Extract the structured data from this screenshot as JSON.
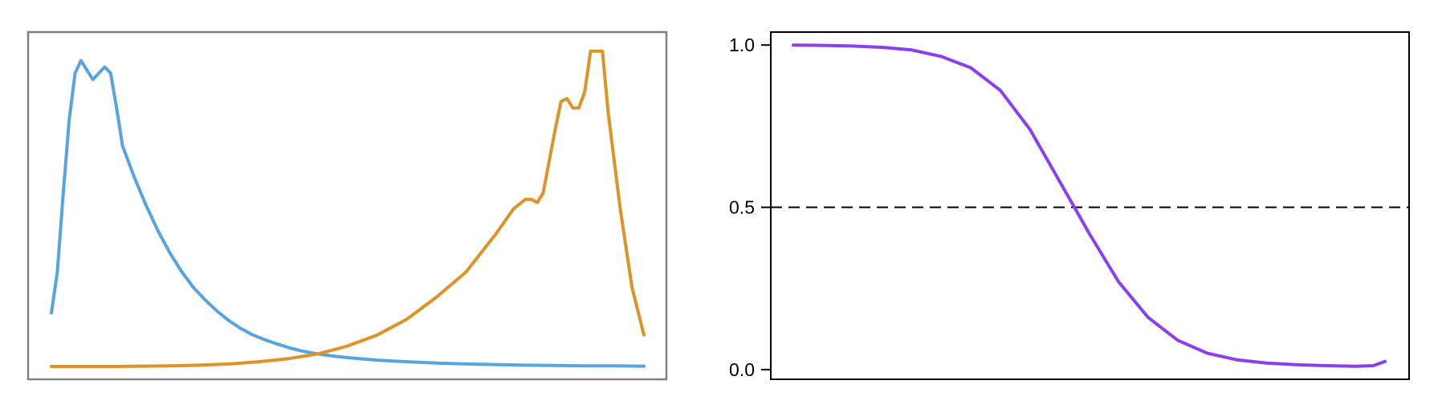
{
  "chart_data": [
    {
      "type": "line",
      "title": "",
      "xlabel": "",
      "ylabel": "",
      "axes_visible": false,
      "xlim": [
        0,
        1
      ],
      "ylim": [
        0,
        1.03
      ],
      "series": [
        {
          "color": "#56a5e0",
          "x": [
            0.0,
            0.01,
            0.02,
            0.03,
            0.04,
            0.05,
            0.06,
            0.07,
            0.08,
            0.09,
            0.1,
            0.11,
            0.12,
            0.14,
            0.16,
            0.18,
            0.2,
            0.22,
            0.24,
            0.26,
            0.28,
            0.3,
            0.32,
            0.34,
            0.36,
            0.38,
            0.4,
            0.42,
            0.44,
            0.46,
            0.48,
            0.5,
            0.55,
            0.6,
            0.65,
            0.7,
            0.75,
            0.8,
            0.85,
            0.9,
            0.95,
            1.0
          ],
          "y": [
            0.17,
            0.3,
            0.55,
            0.78,
            0.93,
            0.97,
            0.94,
            0.91,
            0.93,
            0.95,
            0.93,
            0.82,
            0.7,
            0.6,
            0.51,
            0.43,
            0.36,
            0.3,
            0.25,
            0.21,
            0.175,
            0.145,
            0.12,
            0.1,
            0.085,
            0.072,
            0.06,
            0.05,
            0.043,
            0.037,
            0.032,
            0.028,
            0.02,
            0.015,
            0.011,
            0.008,
            0.006,
            0.004,
            0.003,
            0.002,
            0.002,
            0.001
          ]
        },
        {
          "color": "#df9225",
          "x": [
            0.0,
            0.05,
            0.1,
            0.15,
            0.2,
            0.25,
            0.3,
            0.35,
            0.4,
            0.45,
            0.5,
            0.55,
            0.6,
            0.65,
            0.7,
            0.75,
            0.78,
            0.8,
            0.81,
            0.82,
            0.83,
            0.84,
            0.85,
            0.86,
            0.87,
            0.88,
            0.89,
            0.9,
            0.91,
            0.92,
            0.93,
            0.94,
            0.96,
            0.98,
            1.0
          ],
          "y": [
            0.0,
            0.0,
            0.0,
            0.001,
            0.002,
            0.004,
            0.008,
            0.015,
            0.025,
            0.04,
            0.065,
            0.1,
            0.15,
            0.22,
            0.3,
            0.42,
            0.5,
            0.53,
            0.53,
            0.52,
            0.55,
            0.65,
            0.75,
            0.84,
            0.85,
            0.82,
            0.82,
            0.87,
            1.0,
            1.0,
            1.0,
            0.8,
            0.5,
            0.25,
            0.1
          ]
        }
      ]
    },
    {
      "type": "line",
      "title": "",
      "xlabel": "",
      "ylabel": "",
      "x_ticks_visible": false,
      "xlim": [
        0,
        1
      ],
      "ylim": [
        -0.03,
        1.04
      ],
      "yticks": [
        "0.0",
        "0.5",
        "1.0"
      ],
      "reference_line": {
        "y": 0.5,
        "style": "dashed",
        "color": "#000000"
      },
      "series": [
        {
          "color": "#8a3ff0",
          "x": [
            0.0,
            0.05,
            0.1,
            0.15,
            0.2,
            0.25,
            0.3,
            0.35,
            0.4,
            0.45,
            0.5,
            0.55,
            0.6,
            0.65,
            0.7,
            0.75,
            0.8,
            0.85,
            0.9,
            0.95,
            0.98,
            1.0
          ],
          "y": [
            1.0,
            0.999,
            0.997,
            0.993,
            0.985,
            0.965,
            0.93,
            0.86,
            0.74,
            0.58,
            0.42,
            0.27,
            0.16,
            0.09,
            0.05,
            0.03,
            0.02,
            0.015,
            0.012,
            0.01,
            0.012,
            0.025
          ]
        }
      ]
    }
  ]
}
